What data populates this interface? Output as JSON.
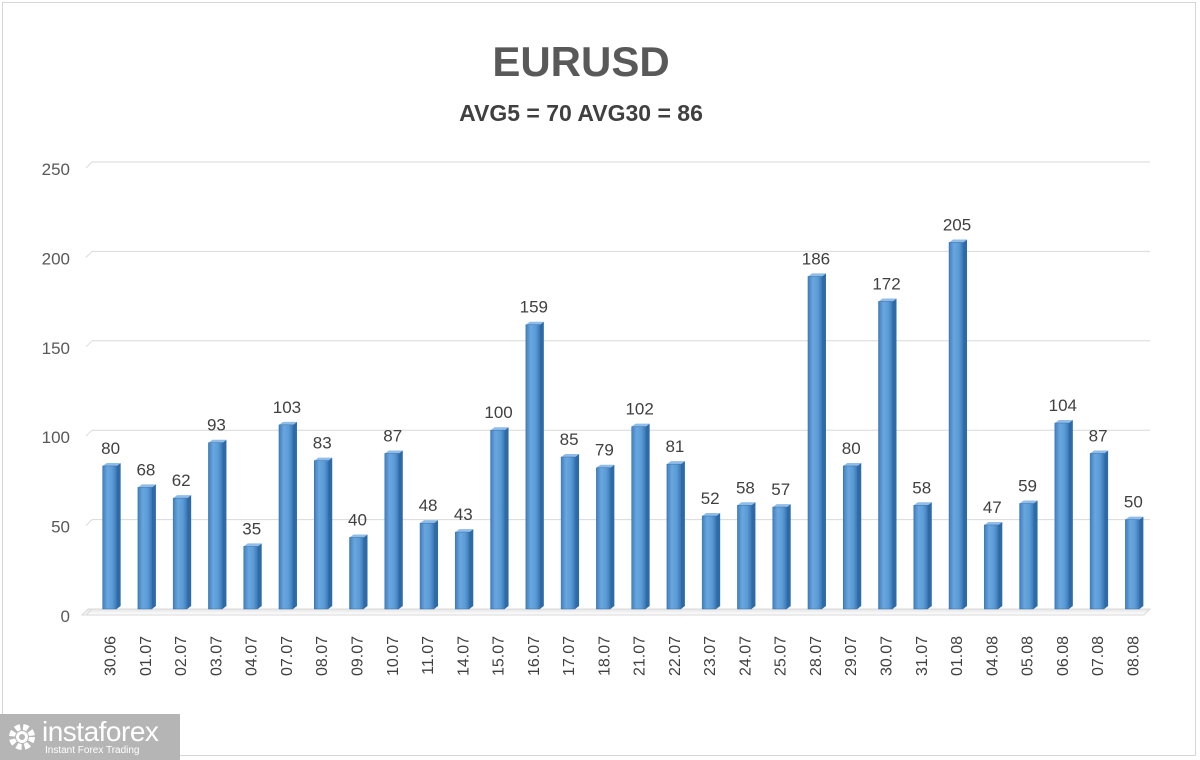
{
  "chart_data": {
    "type": "bar",
    "title": "EURUSD",
    "subtitle": "AVG5 = 70 AVG30 = 86",
    "categories": [
      "30.06",
      "01.07",
      "02.07",
      "03.07",
      "04.07",
      "07.07",
      "08.07",
      "09.07",
      "10.07",
      "11.07",
      "14.07",
      "15.07",
      "16.07",
      "17.07",
      "18.07",
      "21.07",
      "22.07",
      "23.07",
      "24.07",
      "25.07",
      "28.07",
      "29.07",
      "30.07",
      "31.07",
      "01.08",
      "04.08",
      "05.08",
      "06.08",
      "07.08",
      "08.08"
    ],
    "values": [
      80,
      68,
      62,
      93,
      35,
      103,
      83,
      40,
      87,
      48,
      43,
      100,
      159,
      85,
      79,
      102,
      81,
      52,
      58,
      57,
      186,
      80,
      172,
      58,
      205,
      47,
      59,
      104,
      87,
      50
    ],
    "ylim": [
      0,
      250
    ],
    "yticks": [
      0,
      50,
      100,
      150,
      200,
      250
    ],
    "grid": true,
    "legend": "none",
    "xlabel": "",
    "ylabel": "",
    "bar_color": "#5b9bd5"
  },
  "logo": {
    "name": "instaforex",
    "tagline": "Instant Forex Trading"
  }
}
